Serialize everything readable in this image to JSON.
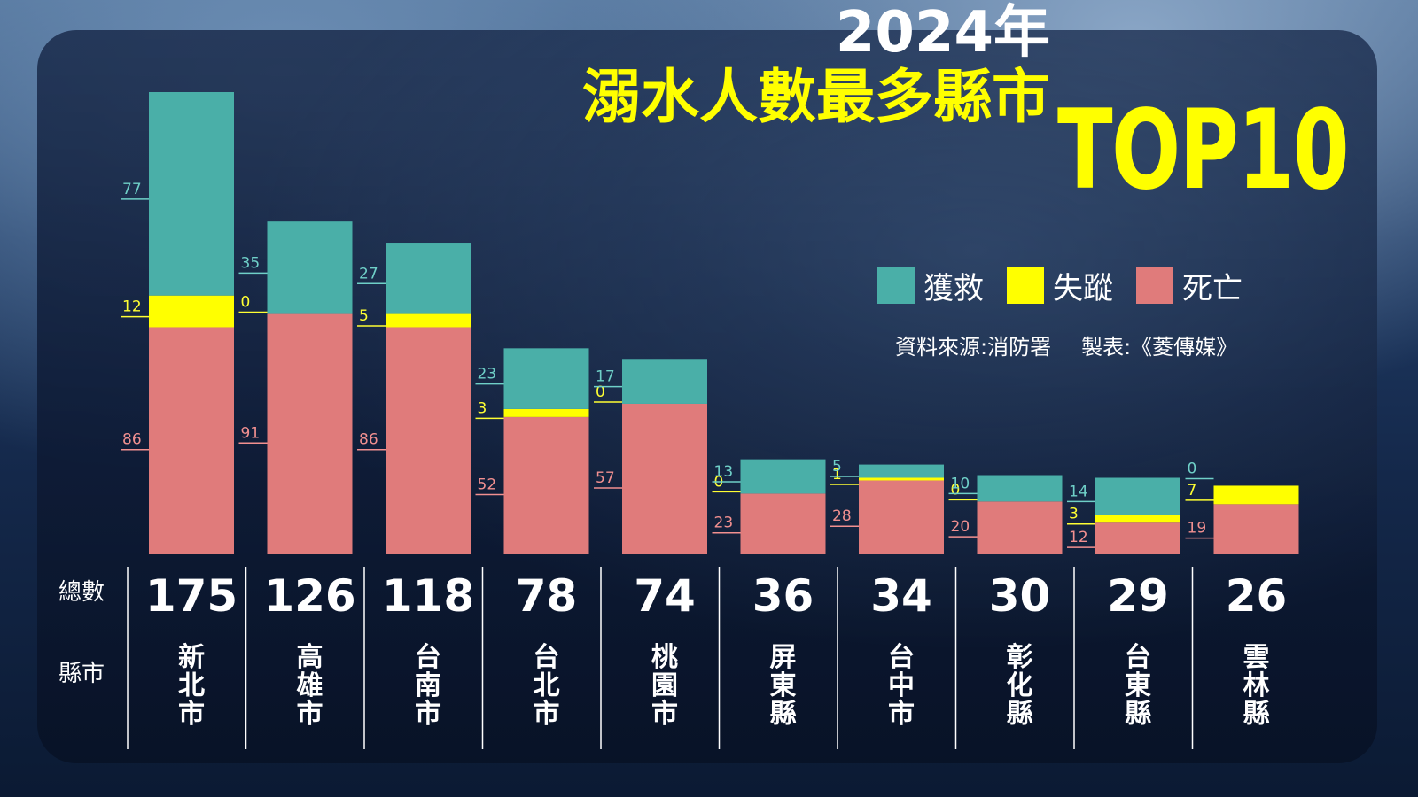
{
  "title": {
    "year": "2024年",
    "main": "溺水人數最多縣市",
    "top": "TOP10"
  },
  "legend": [
    {
      "key": "rescued",
      "label": "獲救",
      "color": "#4aafa8"
    },
    {
      "key": "missing",
      "label": "失蹤",
      "color": "#ffff00"
    },
    {
      "key": "dead",
      "label": "死亡",
      "color": "#e07b7b"
    }
  ],
  "source": {
    "data_source": "資料來源:消防署",
    "producer": "製表:《菱傳媒》"
  },
  "row_labels": {
    "total": "總數",
    "city": "縣市"
  },
  "colors": {
    "rescued": "#4aafa8",
    "missing": "#ffff00",
    "dead": "#e07b7b",
    "rescued_text": "#6fd0c8",
    "missing_text": "#ffff33",
    "dead_text": "#f29090"
  },
  "chart_data": {
    "type": "bar",
    "stacked": true,
    "title": "2024年 溺水人數最多縣市 TOP10",
    "categories": [
      "新北市",
      "高雄市",
      "台南市",
      "台北市",
      "桃園市",
      "屏東縣",
      "台中市",
      "彰化縣",
      "台東縣",
      "雲林縣"
    ],
    "series": [
      {
        "name": "死亡",
        "values": [
          86,
          91,
          86,
          52,
          57,
          23,
          28,
          20,
          12,
          19
        ]
      },
      {
        "name": "失蹤",
        "values": [
          12,
          0,
          5,
          3,
          0,
          0,
          1,
          0,
          3,
          7
        ]
      },
      {
        "name": "獲救",
        "values": [
          77,
          35,
          27,
          23,
          17,
          13,
          5,
          10,
          14,
          0
        ]
      }
    ],
    "totals": [
      175,
      126,
      118,
      78,
      74,
      36,
      34,
      30,
      29,
      26
    ],
    "ylim": [
      0,
      175
    ],
    "grid": false,
    "legend_position": "top-right"
  }
}
